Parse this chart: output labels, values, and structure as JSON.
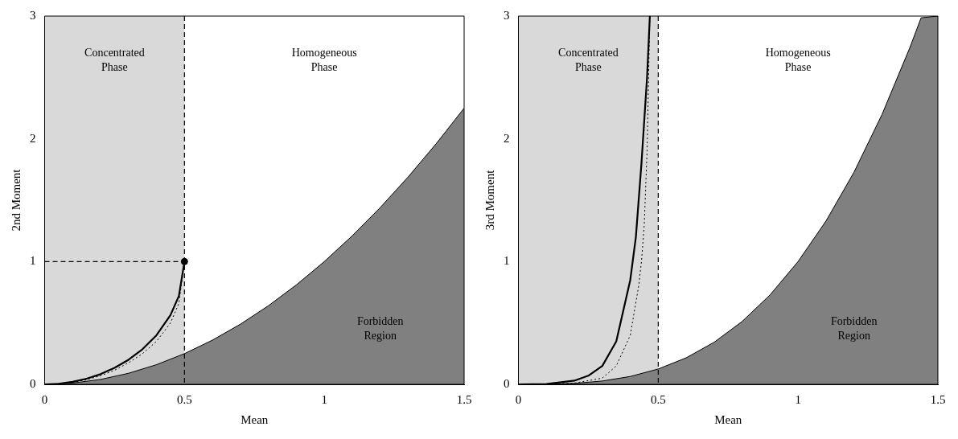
{
  "chart_data": [
    {
      "type": "line",
      "xlabel": "Mean",
      "ylabel": "2nd Moment",
      "xlim": [
        0,
        1.5
      ],
      "ylim": [
        0,
        3
      ],
      "xticks": [
        0,
        0.5,
        1,
        1.5
      ],
      "yticks": [
        0,
        1,
        2,
        3
      ],
      "legend": false,
      "bands": [
        {
          "axis": "x",
          "from": 0,
          "to": 0.5,
          "color": "#d9d9d9",
          "label": "Concentrated Phase"
        }
      ],
      "ref_lines": [
        {
          "axis": "x",
          "value": 0.5,
          "line_style": "dashed",
          "color": "#000000"
        }
      ],
      "annotations": [
        "Homogeneous Phase"
      ],
      "series": [
        {
          "type": "area",
          "name": "Forbidden Region",
          "color": "#808080",
          "x": [
            0,
            0.1,
            0.2,
            0.3,
            0.4,
            0.5,
            0.6,
            0.7,
            0.8,
            0.9,
            1,
            1.1,
            1.2,
            1.3,
            1.4,
            1.5
          ],
          "values": [
            0,
            0.01,
            0.04,
            0.09,
            0.16,
            0.25,
            0.36,
            0.49,
            0.64,
            0.81,
            1,
            1.21,
            1.44,
            1.69,
            1.96,
            2.25
          ]
        },
        {
          "color": "#000000",
          "line_style": "solid",
          "x": [
            0,
            0.05,
            0.1,
            0.15,
            0.2,
            0.25,
            0.3,
            0.35,
            0.4,
            0.45,
            0.48,
            0.5
          ],
          "values": [
            0,
            0.005,
            0.02,
            0.046,
            0.083,
            0.134,
            0.2,
            0.286,
            0.4,
            0.564,
            0.72,
            1
          ]
        },
        {
          "color": "#000000",
          "line_style": "dotted",
          "x": [
            0,
            0.05,
            0.1,
            0.15,
            0.2,
            0.25,
            0.3,
            0.35,
            0.4,
            0.45,
            0.48,
            0.5
          ],
          "values": [
            0,
            0.004,
            0.016,
            0.038,
            0.07,
            0.115,
            0.175,
            0.25,
            0.35,
            0.5,
            0.66,
            1
          ]
        },
        {
          "color": "#000000",
          "line_style": "dashed",
          "x": [
            0,
            0.5
          ],
          "values": [
            1,
            1
          ]
        },
        {
          "type": "scatter",
          "color": "#000000",
          "marker": "circle",
          "x": [
            0.5
          ],
          "values": [
            1
          ]
        }
      ]
    },
    {
      "type": "line",
      "xlabel": "Mean",
      "ylabel": "3rd Moment",
      "xlim": [
        0,
        1.5
      ],
      "ylim": [
        0,
        3
      ],
      "xticks": [
        0,
        0.5,
        1,
        1.5
      ],
      "yticks": [
        0,
        1,
        2,
        3
      ],
      "legend": false,
      "bands": [
        {
          "axis": "x",
          "from": 0,
          "to": 0.5,
          "color": "#d9d9d9",
          "label": "Concentrated Phase"
        }
      ],
      "ref_lines": [
        {
          "axis": "x",
          "value": 0.5,
          "line_style": "dashed",
          "color": "#000000"
        }
      ],
      "annotations": [
        "Homogeneous Phase"
      ],
      "series": [
        {
          "type": "area",
          "name": "Forbidden Region",
          "color": "#808080",
          "x": [
            0,
            0.1,
            0.2,
            0.3,
            0.4,
            0.5,
            0.6,
            0.7,
            0.8,
            0.9,
            1,
            1.1,
            1.2,
            1.3,
            1.4,
            1.44,
            1.5
          ],
          "values": [
            0,
            0.001,
            0.008,
            0.027,
            0.064,
            0.125,
            0.216,
            0.343,
            0.512,
            0.729,
            1,
            1.331,
            1.728,
            2.197,
            2.744,
            2.986,
            3
          ]
        },
        {
          "color": "#000000",
          "line_style": "solid",
          "x": [
            0,
            0.1,
            0.2,
            0.25,
            0.3,
            0.35,
            0.4,
            0.42,
            0.44,
            0.46,
            0.47
          ],
          "values": [
            0,
            0.003,
            0.03,
            0.07,
            0.15,
            0.35,
            0.85,
            1.2,
            1.8,
            2.5,
            3
          ]
        },
        {
          "color": "#000000",
          "line_style": "dotted",
          "x": [
            0,
            0.1,
            0.2,
            0.3,
            0.35,
            0.4,
            0.43,
            0.44,
            0.45,
            0.46,
            0.47
          ],
          "values": [
            0,
            0.001,
            0.01,
            0.05,
            0.15,
            0.4,
            0.8,
            1,
            1.3,
            1.9,
            3
          ]
        }
      ]
    }
  ]
}
